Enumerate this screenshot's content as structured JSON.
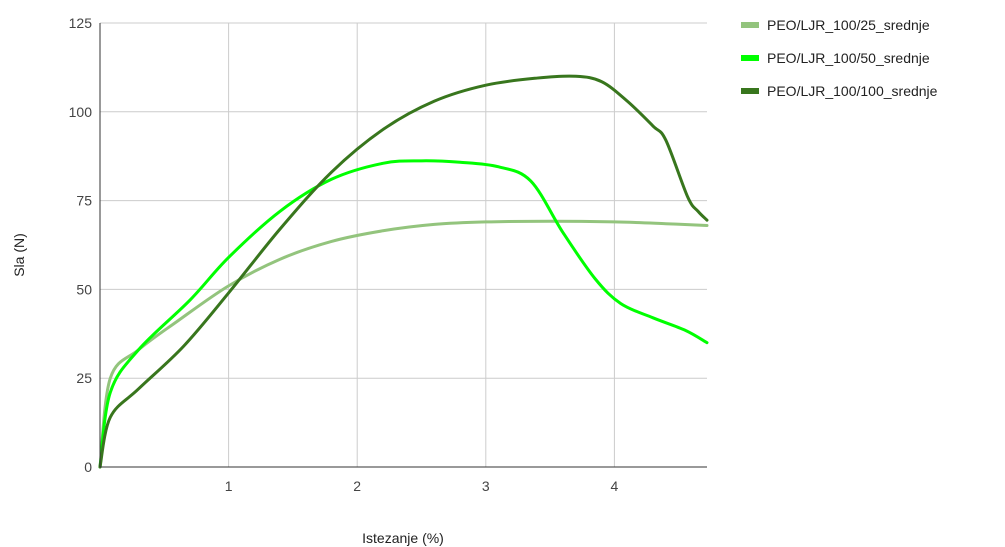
{
  "chart_data": {
    "type": "line",
    "title": "",
    "xlabel": "Istezanje (%)",
    "ylabel": "Sla (N)",
    "xlim": [
      0,
      4.72
    ],
    "ylim": [
      0,
      125
    ],
    "x_ticks": [
      1,
      2,
      3,
      4
    ],
    "x_tick_labels": [
      "1",
      "2",
      "3",
      "4"
    ],
    "y_ticks": [
      0,
      25,
      50,
      75,
      100,
      125
    ],
    "y_tick_labels": [
      "0",
      "25",
      "50",
      "75",
      "100",
      "125"
    ],
    "grid": true,
    "legend_position": "right",
    "series": [
      {
        "name": "PEO/LJR_100/25_srednje",
        "color": "#93c47d",
        "points": [
          [
            0,
            0
          ],
          [
            0.08,
            25
          ],
          [
            0.3,
            33
          ],
          [
            0.6,
            41
          ],
          [
            1.0,
            51
          ],
          [
            1.4,
            58.5
          ],
          [
            1.8,
            63.5
          ],
          [
            2.2,
            66.5
          ],
          [
            2.6,
            68.3
          ],
          [
            3.0,
            69
          ],
          [
            3.5,
            69.2
          ],
          [
            4.0,
            69
          ],
          [
            4.4,
            68.5
          ],
          [
            4.72,
            68
          ]
        ]
      },
      {
        "name": "PEO/LJR_100/50_srednje",
        "color": "#00ff00",
        "points": [
          [
            0,
            0
          ],
          [
            0.08,
            21
          ],
          [
            0.3,
            33
          ],
          [
            0.7,
            47
          ],
          [
            1.0,
            59
          ],
          [
            1.4,
            72
          ],
          [
            1.8,
            81
          ],
          [
            2.2,
            85.5
          ],
          [
            2.5,
            86.2
          ],
          [
            2.8,
            85.8
          ],
          [
            3.1,
            84.5
          ],
          [
            3.35,
            80.5
          ],
          [
            3.6,
            66
          ],
          [
            3.85,
            53
          ],
          [
            4.05,
            46
          ],
          [
            4.3,
            42
          ],
          [
            4.55,
            38.5
          ],
          [
            4.72,
            35
          ]
        ]
      },
      {
        "name": "PEO/LJR_100/100_srednje",
        "color": "#38761d",
        "points": [
          [
            0,
            0
          ],
          [
            0.08,
            14
          ],
          [
            0.3,
            22
          ],
          [
            0.65,
            34
          ],
          [
            1.0,
            49
          ],
          [
            1.4,
            67
          ],
          [
            1.8,
            83
          ],
          [
            2.2,
            95
          ],
          [
            2.6,
            103
          ],
          [
            3.0,
            107.5
          ],
          [
            3.4,
            109.5
          ],
          [
            3.7,
            110
          ],
          [
            3.9,
            108.5
          ],
          [
            4.1,
            103
          ],
          [
            4.3,
            96
          ],
          [
            4.4,
            92
          ],
          [
            4.57,
            76
          ],
          [
            4.65,
            72
          ],
          [
            4.72,
            69.5
          ]
        ]
      }
    ]
  }
}
